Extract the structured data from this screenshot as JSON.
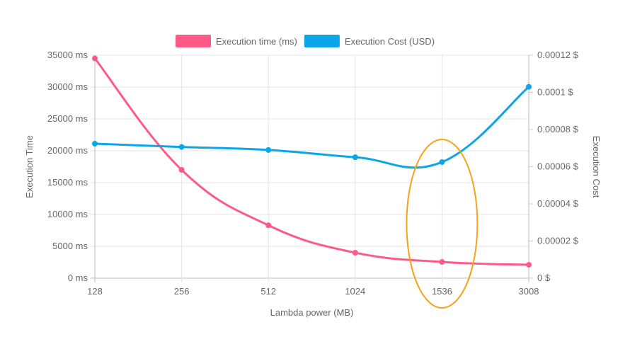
{
  "chart_data": {
    "type": "line",
    "categories": [
      "128",
      "256",
      "512",
      "1024",
      "1536",
      "3008"
    ],
    "xlabel": "Lambda power (MB)",
    "ylabel_left": "Execution Time",
    "ylabel_right": "Execution Cost",
    "y_left": {
      "min": 0,
      "max": 35000,
      "step": 5000,
      "unit": " ms"
    },
    "y_right": {
      "min": 0,
      "max": 0.00012,
      "step": 2e-05,
      "unit": " $",
      "tick_labels": [
        "0 $",
        "0.00002 $",
        "0.00004 $",
        "0.00006 $",
        "0.00008 $",
        "0.0001 $",
        "0.00012 $"
      ]
    },
    "grid": true,
    "legend_position": "top",
    "series": [
      {
        "name": "Execution time (ms)",
        "axis": "left",
        "color": "#ff5a87",
        "values": [
          34500,
          17000,
          8300,
          4000,
          2550,
          2100
        ]
      },
      {
        "name": "Execution Cost (USD)",
        "axis": "right",
        "color": "#0ca5e8",
        "values": [
          7.24e-05,
          7.06e-05,
          6.9e-05,
          6.51e-05,
          6.25e-05,
          0.000103
        ]
      }
    ],
    "annotation": {
      "type": "ellipse",
      "category": "1536",
      "color": "#f5a31a"
    }
  }
}
